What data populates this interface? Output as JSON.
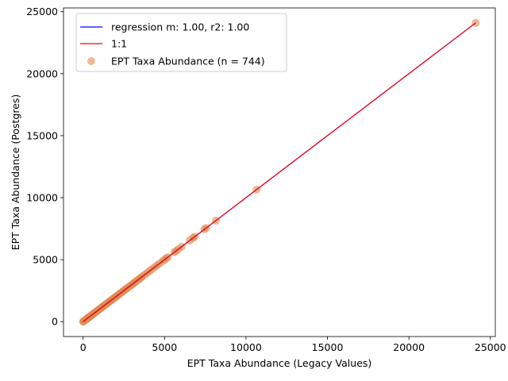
{
  "chart_data": {
    "type": "scatter",
    "title": "",
    "xlabel": "EPT Taxa Abundance (Legacy Values)",
    "ylabel": "EPT Taxa Abundance (Postgres)",
    "xlim": [
      -1204,
      25304
    ],
    "ylim": [
      -1204,
      25304
    ],
    "xticks": [
      0,
      5000,
      10000,
      15000,
      20000,
      25000
    ],
    "yticks": [
      0,
      5000,
      10000,
      15000,
      20000,
      25000
    ],
    "grid": false,
    "legend": {
      "placement": "top-left",
      "entries": [
        "regression m: 1.00, r2: 1.00",
        "1:1",
        "EPT Taxa Abundance (n = 744)"
      ]
    },
    "colors": {
      "regression": "#0000ff",
      "identity": "#ff0000",
      "points": "#e08a50"
    },
    "regression": {
      "slope": 1.0,
      "intercept": 0,
      "x_range": [
        0,
        24100
      ]
    },
    "identity_line": {
      "x_range": [
        0,
        24100
      ]
    },
    "series": [
      {
        "name": "EPT Taxa Abundance (n = 744)",
        "points": [
          [
            0,
            0
          ],
          [
            20,
            20
          ],
          [
            45,
            45
          ],
          [
            80,
            80
          ],
          [
            120,
            120
          ],
          [
            160,
            160
          ],
          [
            200,
            200
          ],
          [
            240,
            240
          ],
          [
            280,
            280
          ],
          [
            320,
            320
          ],
          [
            360,
            360
          ],
          [
            400,
            400
          ],
          [
            440,
            440
          ],
          [
            480,
            480
          ],
          [
            520,
            520
          ],
          [
            560,
            560
          ],
          [
            600,
            600
          ],
          [
            650,
            650
          ],
          [
            700,
            700
          ],
          [
            750,
            750
          ],
          [
            800,
            800
          ],
          [
            850,
            850
          ],
          [
            900,
            900
          ],
          [
            950,
            950
          ],
          [
            1000,
            1000
          ],
          [
            1060,
            1060
          ],
          [
            1120,
            1120
          ],
          [
            1180,
            1180
          ],
          [
            1240,
            1240
          ],
          [
            1300,
            1300
          ],
          [
            1360,
            1360
          ],
          [
            1420,
            1420
          ],
          [
            1480,
            1480
          ],
          [
            1540,
            1540
          ],
          [
            1600,
            1600
          ],
          [
            1660,
            1660
          ],
          [
            1720,
            1720
          ],
          [
            1780,
            1780
          ],
          [
            1840,
            1840
          ],
          [
            1900,
            1900
          ],
          [
            1960,
            1960
          ],
          [
            2020,
            2020
          ],
          [
            2080,
            2080
          ],
          [
            2140,
            2140
          ],
          [
            2200,
            2200
          ],
          [
            2270,
            2270
          ],
          [
            2340,
            2340
          ],
          [
            2410,
            2410
          ],
          [
            2480,
            2480
          ],
          [
            2550,
            2550
          ],
          [
            2620,
            2620
          ],
          [
            2700,
            2700
          ],
          [
            2780,
            2780
          ],
          [
            2860,
            2860
          ],
          [
            2940,
            2940
          ],
          [
            3020,
            3020
          ],
          [
            3100,
            3100
          ],
          [
            3180,
            3180
          ],
          [
            3260,
            3260
          ],
          [
            3340,
            3340
          ],
          [
            3420,
            3420
          ],
          [
            3500,
            3500
          ],
          [
            3580,
            3580
          ],
          [
            3660,
            3660
          ],
          [
            3800,
            3800
          ],
          [
            3950,
            3950
          ],
          [
            4100,
            4100
          ],
          [
            4250,
            4250
          ],
          [
            4400,
            4400
          ],
          [
            4550,
            4550
          ],
          [
            4700,
            4700
          ],
          [
            4900,
            4900
          ],
          [
            5000,
            5000
          ],
          [
            5100,
            5100
          ],
          [
            5200,
            5200
          ],
          [
            5600,
            5600
          ],
          [
            5700,
            5700
          ],
          [
            5850,
            5850
          ],
          [
            6050,
            6050
          ],
          [
            6550,
            6550
          ],
          [
            6750,
            6750
          ],
          [
            6850,
            6850
          ],
          [
            7450,
            7450
          ],
          [
            7550,
            7550
          ],
          [
            8150,
            8150
          ],
          [
            10650,
            10650
          ],
          [
            24100,
            24100
          ]
        ]
      }
    ]
  }
}
